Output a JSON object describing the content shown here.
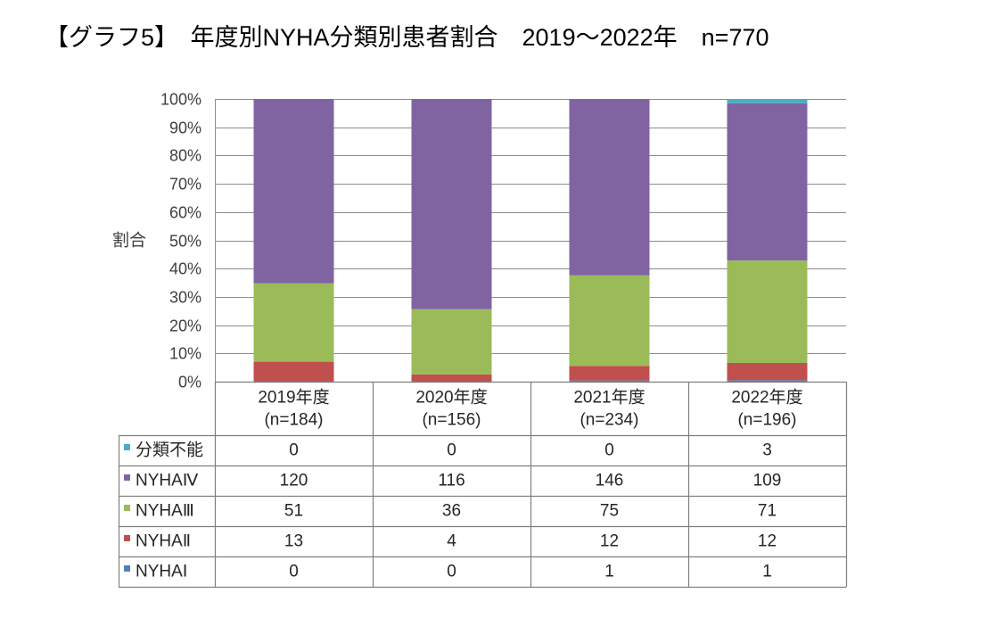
{
  "chart_data": {
    "type": "bar",
    "stacking": "percent",
    "title": "【グラフ5】　年度別NYHA分類別患者割合　2019～2022年　n=770",
    "ylabel": "割合",
    "ylim": [
      0,
      100
    ],
    "y_tick_labels": [
      "0%",
      "10%",
      "20%",
      "30%",
      "40%",
      "50%",
      "60%",
      "70%",
      "80%",
      "90%",
      "100%"
    ],
    "grid": true,
    "legend": "data-table",
    "categories": [
      "2019年度",
      "2020年度",
      "2021年度",
      "2022年度"
    ],
    "category_n": [
      "(n=184)",
      "(n=156)",
      "(n=234)",
      "(n=196)"
    ],
    "series": [
      {
        "name": "NYHAⅠ",
        "color": "#4F81BD",
        "values": [
          0,
          0,
          1,
          1
        ]
      },
      {
        "name": "NYHAⅡ",
        "color": "#C0504D",
        "values": [
          13,
          4,
          12,
          12
        ]
      },
      {
        "name": "NYHAⅢ",
        "color": "#9BBB59",
        "values": [
          51,
          36,
          75,
          71
        ]
      },
      {
        "name": "NYHAⅣ",
        "color": "#8064A2",
        "values": [
          120,
          116,
          146,
          109
        ]
      },
      {
        "name": "分類不能",
        "color": "#4BACC6",
        "values": [
          0,
          0,
          0,
          3
        ]
      }
    ]
  }
}
